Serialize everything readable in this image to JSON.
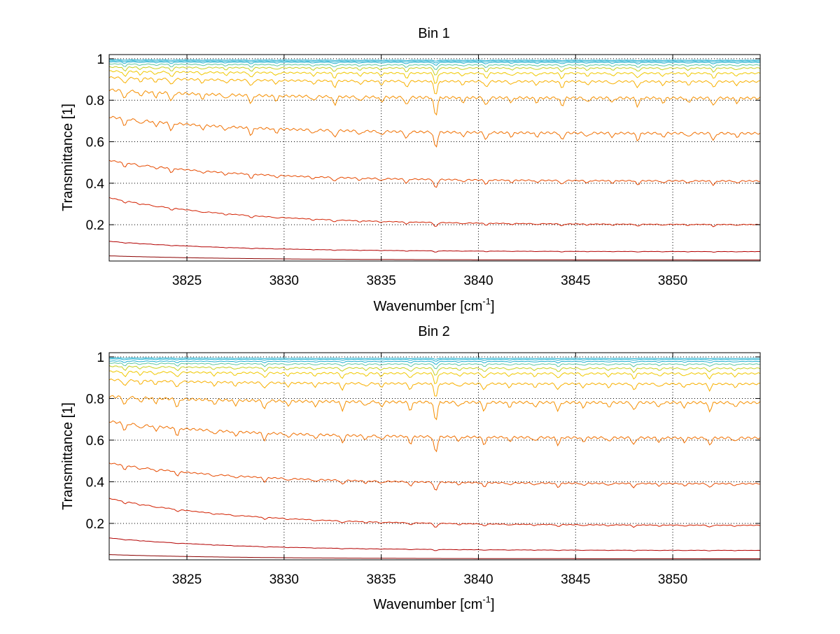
{
  "chart_data": [
    {
      "type": "line",
      "title": "Bin 1",
      "xlabel": "Wavenumber [cm",
      "xlabel_sup": "-1",
      "xlabel_end": "]",
      "ylabel": "Transmittance [1]",
      "xlim": [
        3821,
        3854.5
      ],
      "ylim": [
        0.025,
        1.02
      ],
      "xticks": [
        3825,
        3830,
        3835,
        3840,
        3845,
        3850
      ],
      "yticks": [
        0.2,
        0.4,
        0.6,
        0.8,
        1
      ],
      "ytick_labels": [
        "0.2",
        "0.4",
        "0.6",
        "0.8",
        "1"
      ],
      "grid": true,
      "legend": "none",
      "colors": [
        "#8b0000",
        "#b30000",
        "#d22000",
        "#e64a00",
        "#f07000",
        "#f59000",
        "#f8b000",
        "#f0c800",
        "#c8d020",
        "#60c8a0",
        "#20b0d0"
      ],
      "absorption_lines": [
        3821.8,
        3822.6,
        3823.4,
        3824.2,
        3825.8,
        3827.0,
        3828.3,
        3829.6,
        3831.5,
        3832.6,
        3833.9,
        3835.0,
        3836.3,
        3837.8,
        3839.2,
        3840.4,
        3841.7,
        3843.0,
        3844.3,
        3845.6,
        3846.9,
        3848.2,
        3849.5,
        3850.8,
        3852.1,
        3853.3
      ],
      "series": [
        {
          "start": 0.05,
          "end": 0.03,
          "depth": 0.0
        },
        {
          "start": 0.12,
          "end": 0.07,
          "depth": 0.003
        },
        {
          "start": 0.33,
          "end": 0.2,
          "depth": 0.01
        },
        {
          "start": 0.51,
          "end": 0.41,
          "depth": 0.02
        },
        {
          "start": 0.72,
          "end": 0.64,
          "depth": 0.035
        },
        {
          "start": 0.85,
          "end": 0.81,
          "depth": 0.04
        },
        {
          "start": 0.91,
          "end": 0.89,
          "depth": 0.03
        },
        {
          "start": 0.94,
          "end": 0.93,
          "depth": 0.025
        },
        {
          "start": 0.96,
          "end": 0.955,
          "depth": 0.018
        },
        {
          "start": 0.975,
          "end": 0.97,
          "depth": 0.012
        },
        {
          "start": 0.985,
          "end": 0.982,
          "depth": 0.007
        },
        {
          "start": 0.99,
          "end": 0.988,
          "depth": 0.004
        },
        {
          "start": 0.995,
          "end": 0.993,
          "depth": 0.002
        }
      ]
    },
    {
      "type": "line",
      "title": "Bin 2",
      "xlabel": "Wavenumber [cm",
      "xlabel_sup": "-1",
      "xlabel_end": "]",
      "ylabel": "Transmittance [1]",
      "xlim": [
        3821,
        3854.5
      ],
      "ylim": [
        0.025,
        1.02
      ],
      "xticks": [
        3825,
        3830,
        3835,
        3840,
        3845,
        3850
      ],
      "yticks": [
        0.2,
        0.4,
        0.6,
        0.8,
        1
      ],
      "ytick_labels": [
        "0.2",
        "0.4",
        "0.6",
        "0.8",
        "1"
      ],
      "grid": true,
      "legend": "none",
      "colors": [
        "#8b0000",
        "#b30000",
        "#d22000",
        "#e64a00",
        "#f07000",
        "#f59000",
        "#f8b000",
        "#f0c800",
        "#c8d020",
        "#60c8a0",
        "#20b0d0"
      ],
      "absorption_lines": [
        3821.8,
        3822.6,
        3823.4,
        3824.5,
        3826.4,
        3827.5,
        3829.0,
        3830.2,
        3831.6,
        3833.0,
        3834.2,
        3835.0,
        3836.5,
        3837.8,
        3839.0,
        3840.3,
        3841.6,
        3842.9,
        3844.1,
        3845.4,
        3846.7,
        3848.0,
        3849.3,
        3850.6,
        3851.9,
        3853.2
      ],
      "series": [
        {
          "start": 0.05,
          "end": 0.03,
          "depth": 0.0
        },
        {
          "start": 0.13,
          "end": 0.07,
          "depth": 0.003
        },
        {
          "start": 0.32,
          "end": 0.19,
          "depth": 0.01
        },
        {
          "start": 0.49,
          "end": 0.39,
          "depth": 0.02
        },
        {
          "start": 0.69,
          "end": 0.61,
          "depth": 0.035
        },
        {
          "start": 0.81,
          "end": 0.78,
          "depth": 0.04
        },
        {
          "start": 0.89,
          "end": 0.87,
          "depth": 0.03
        },
        {
          "start": 0.93,
          "end": 0.92,
          "depth": 0.025
        },
        {
          "start": 0.955,
          "end": 0.945,
          "depth": 0.018
        },
        {
          "start": 0.97,
          "end": 0.965,
          "depth": 0.012
        },
        {
          "start": 0.98,
          "end": 0.978,
          "depth": 0.007
        },
        {
          "start": 0.99,
          "end": 0.987,
          "depth": 0.004
        },
        {
          "start": 0.995,
          "end": 0.993,
          "depth": 0.002
        }
      ]
    }
  ]
}
